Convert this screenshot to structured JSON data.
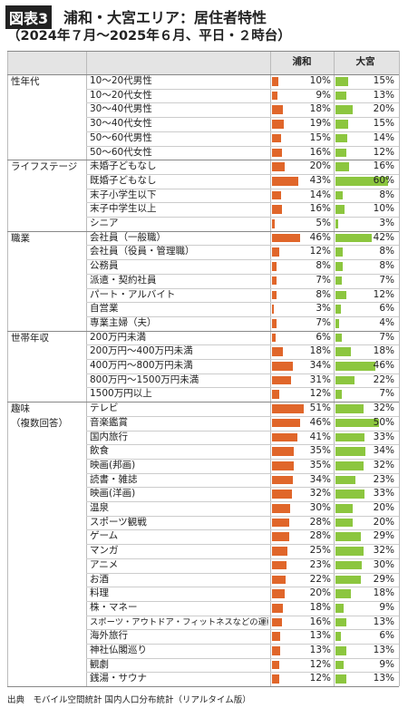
{
  "header": {
    "badge": "図表3",
    "title": "浦和・大宮エリア：居住者特性",
    "subtitle": "（2024年７月〜2025年６月、平日・２時台）"
  },
  "table": {
    "columns": [
      {
        "name": "浦和",
        "color": "#e0662a"
      },
      {
        "name": "大宮",
        "color": "#8cc63f"
      }
    ],
    "groups": [
      {
        "name": [
          "性年代"
        ],
        "rows": [
          {
            "label": "10〜20代男性",
            "values": [
              10,
              15
            ],
            "value_labels": [
              "10%",
              "15%"
            ]
          },
          {
            "label": "10〜20代女性",
            "values": [
              9,
              13
            ],
            "value_labels": [
              "9%",
              "13%"
            ]
          },
          {
            "label": "30〜40代男性",
            "values": [
              18,
              20
            ],
            "value_labels": [
              "18%",
              "20%"
            ]
          },
          {
            "label": "30〜40代女性",
            "values": [
              19,
              15
            ],
            "value_labels": [
              "19%",
              "15%"
            ]
          },
          {
            "label": "50〜60代男性",
            "values": [
              15,
              14
            ],
            "value_labels": [
              "15%",
              "14%"
            ]
          },
          {
            "label": "50〜60代女性",
            "values": [
              16,
              12
            ],
            "value_labels": [
              "16%",
              "12%"
            ]
          }
        ]
      },
      {
        "name": [
          "ライフステージ"
        ],
        "rows": [
          {
            "label": "未婚子どもなし",
            "values": [
              20,
              16
            ],
            "value_labels": [
              "20%",
              "16%"
            ]
          },
          {
            "label": "既婚子どもなし",
            "values": [
              43,
              60
            ],
            "value_labels": [
              "43%",
              "60%"
            ]
          },
          {
            "label": "末子小学生以下",
            "values": [
              14,
              8
            ],
            "value_labels": [
              "14%",
              "8%"
            ]
          },
          {
            "label": "末子中学生以上",
            "values": [
              16,
              10
            ],
            "value_labels": [
              "16%",
              "10%"
            ]
          },
          {
            "label": "シニア",
            "values": [
              5,
              3
            ],
            "value_labels": [
              "5%",
              "3%"
            ]
          }
        ]
      },
      {
        "name": [
          "職業"
        ],
        "rows": [
          {
            "label": "会社員（一般職）",
            "values": [
              46,
              42
            ],
            "value_labels": [
              "46%",
              "42%"
            ]
          },
          {
            "label": "会社員（役員・管理職）",
            "values": [
              12,
              8
            ],
            "value_labels": [
              "12%",
              "8%"
            ]
          },
          {
            "label": "公務員",
            "values": [
              8,
              8
            ],
            "value_labels": [
              "8%",
              "8%"
            ]
          },
          {
            "label": "派遣・契約社員",
            "values": [
              7,
              7
            ],
            "value_labels": [
              "7%",
              "7%"
            ]
          },
          {
            "label": "パート・アルバイト",
            "values": [
              8,
              12
            ],
            "value_labels": [
              "8%",
              "12%"
            ]
          },
          {
            "label": "自営業",
            "values": [
              3,
              6
            ],
            "value_labels": [
              "3%",
              "6%"
            ]
          },
          {
            "label": "専業主婦（夫）",
            "values": [
              7,
              4
            ],
            "value_labels": [
              "7%",
              "4%"
            ]
          }
        ]
      },
      {
        "name": [
          "世帯年収"
        ],
        "rows": [
          {
            "label": "200万円未満",
            "values": [
              6,
              7
            ],
            "value_labels": [
              "6%",
              "7%"
            ]
          },
          {
            "label": "200万円〜400万円未満",
            "values": [
              18,
              18
            ],
            "value_labels": [
              "18%",
              "18%"
            ]
          },
          {
            "label": "400万円〜800万円未満",
            "values": [
              34,
              46
            ],
            "value_labels": [
              "34%",
              "46%"
            ]
          },
          {
            "label": "800万円〜1500万円未満",
            "values": [
              31,
              22
            ],
            "value_labels": [
              "31%",
              "22%"
            ]
          },
          {
            "label": "1500万円以上",
            "values": [
              12,
              7
            ],
            "value_labels": [
              "12%",
              "7%"
            ]
          }
        ]
      },
      {
        "name": [
          "趣味",
          "（複数回答）"
        ],
        "rows": [
          {
            "label": "テレビ",
            "values": [
              51,
              32
            ],
            "value_labels": [
              "51%",
              "32%"
            ]
          },
          {
            "label": "音楽鑑賞",
            "values": [
              46,
              50
            ],
            "value_labels": [
              "46%",
              "50%"
            ]
          },
          {
            "label": "国内旅行",
            "values": [
              41,
              33
            ],
            "value_labels": [
              "41%",
              "33%"
            ]
          },
          {
            "label": "飲食",
            "values": [
              35,
              34
            ],
            "value_labels": [
              "35%",
              "34%"
            ]
          },
          {
            "label": "映画(邦画)",
            "values": [
              35,
              32
            ],
            "value_labels": [
              "35%",
              "32%"
            ]
          },
          {
            "label": "読書・雑誌",
            "values": [
              34,
              23
            ],
            "value_labels": [
              "34%",
              "23%"
            ]
          },
          {
            "label": "映画(洋画)",
            "values": [
              32,
              33
            ],
            "value_labels": [
              "32%",
              "33%"
            ]
          },
          {
            "label": "温泉",
            "values": [
              30,
              20
            ],
            "value_labels": [
              "30%",
              "20%"
            ]
          },
          {
            "label": "スポーツ観戦",
            "values": [
              28,
              20
            ],
            "value_labels": [
              "28%",
              "20%"
            ]
          },
          {
            "label": "ゲーム",
            "values": [
              28,
              29
            ],
            "value_labels": [
              "28%",
              "29%"
            ]
          },
          {
            "label": "マンガ",
            "values": [
              25,
              32
            ],
            "value_labels": [
              "25%",
              "32%"
            ]
          },
          {
            "label": "アニメ",
            "values": [
              23,
              30
            ],
            "value_labels": [
              "23%",
              "30%"
            ]
          },
          {
            "label": "お酒",
            "values": [
              22,
              29
            ],
            "value_labels": [
              "22%",
              "29%"
            ]
          },
          {
            "label": "料理",
            "values": [
              20,
              18
            ],
            "value_labels": [
              "20%",
              "18%"
            ]
          },
          {
            "label": "株・マネー",
            "values": [
              18,
              9
            ],
            "value_labels": [
              "18%",
              "9%"
            ]
          },
          {
            "label": "スポーツ・アウトドア・フィットネスなどの運動",
            "values": [
              16,
              13
            ],
            "value_labels": [
              "16%",
              "13%"
            ]
          },
          {
            "label": "海外旅行",
            "values": [
              13,
              6
            ],
            "value_labels": [
              "13%",
              "6%"
            ]
          },
          {
            "label": "神社仏閣巡り",
            "values": [
              13,
              13
            ],
            "value_labels": [
              "13%",
              "13%"
            ]
          },
          {
            "label": "観劇",
            "values": [
              12,
              9
            ],
            "value_labels": [
              "12%",
              "9%"
            ]
          },
          {
            "label": "銭湯・サウナ",
            "values": [
              12,
              13
            ],
            "value_labels": [
              "12%",
              "13%"
            ]
          }
        ]
      }
    ]
  },
  "footer": {
    "source": "出典　モバイル空間統計 国内人口分布統計（リアルタイム版）"
  }
}
